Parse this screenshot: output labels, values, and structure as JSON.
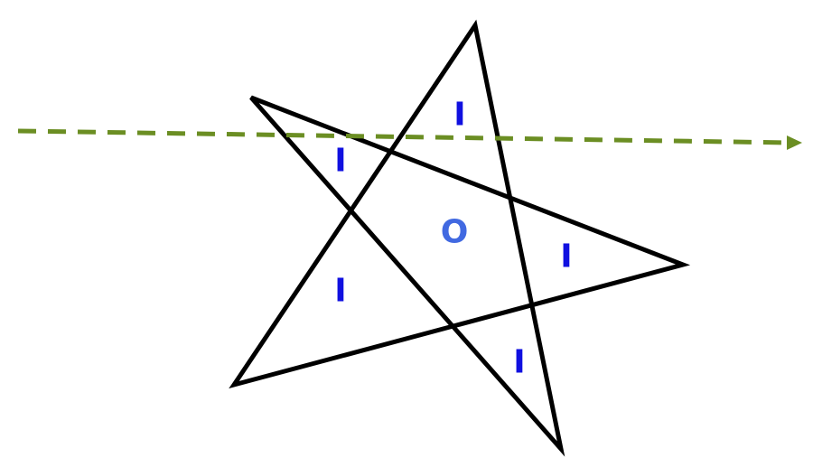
{
  "colors": {
    "star_stroke": "#000000",
    "ray": "#6b8e23",
    "inside_label": "#1010e0",
    "outside_label": "#4169e1",
    "background": "#ffffff"
  },
  "star": {
    "shape": "pentagram",
    "labels": {
      "top": "I",
      "upper_left": "I",
      "right": "I",
      "lower_left": "I",
      "bottom": "I",
      "center": "O"
    }
  },
  "ray": {
    "style": "dashed",
    "arrowhead": "right"
  }
}
